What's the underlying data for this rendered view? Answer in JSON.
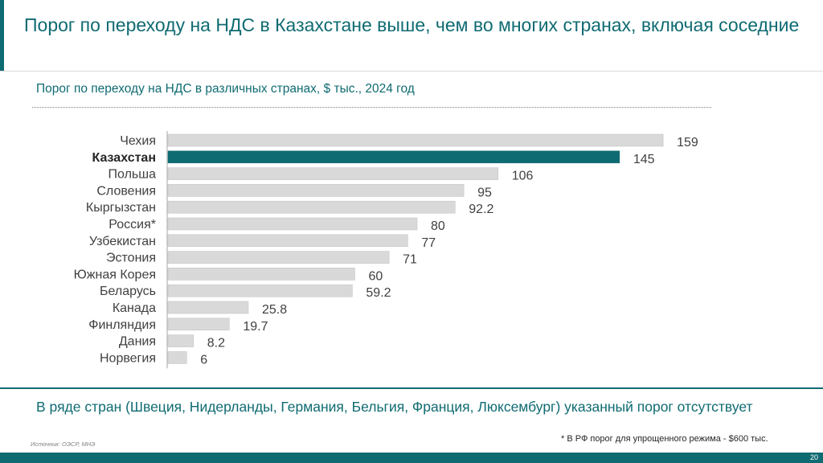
{
  "title": "Порог по переходу на НДС в Казахстане выше, чем во многих странах, включая соседние",
  "subtitle": "Порог по переходу на НДС в различных странах, $ тыс., 2024 год",
  "bottom_note": "В ряде стран (Швеция, Нидерланды, Германия, Бельгия, Франция, Люксембург) указанный порог отсутствует",
  "source": "Источник: ОЭСР, МНЭ",
  "footnote": "* В РФ порог для упрощенного режима - $600 тыс.",
  "page_number": "20",
  "colors": {
    "accent": "#0f6b72",
    "bar_default": "#d9d9d9",
    "bar_highlight": "#0f6b72"
  },
  "chart_data": {
    "type": "bar",
    "orientation": "horizontal",
    "categories": [
      "Чехия",
      "Казахстан",
      "Польша",
      "Словения",
      "Кыргызстан",
      "Россия*",
      "Узбекистан",
      "Эстония",
      "Южная Корея",
      "Беларусь",
      "Канада",
      "Финляндия",
      "Дания",
      "Норвегия"
    ],
    "values": [
      159,
      145,
      106,
      95,
      92.2,
      80,
      77,
      71,
      60,
      59.2,
      25.8,
      19.7,
      8.2,
      6
    ],
    "value_labels": [
      "159",
      "145",
      "106",
      "95",
      "92.2",
      "80",
      "77",
      "71",
      "60",
      "59.2",
      "25.8",
      "19.7",
      "8.2",
      "6"
    ],
    "highlight": "Казахстан",
    "xlim": [
      0,
      160
    ],
    "grid": false,
    "legend": "none"
  }
}
